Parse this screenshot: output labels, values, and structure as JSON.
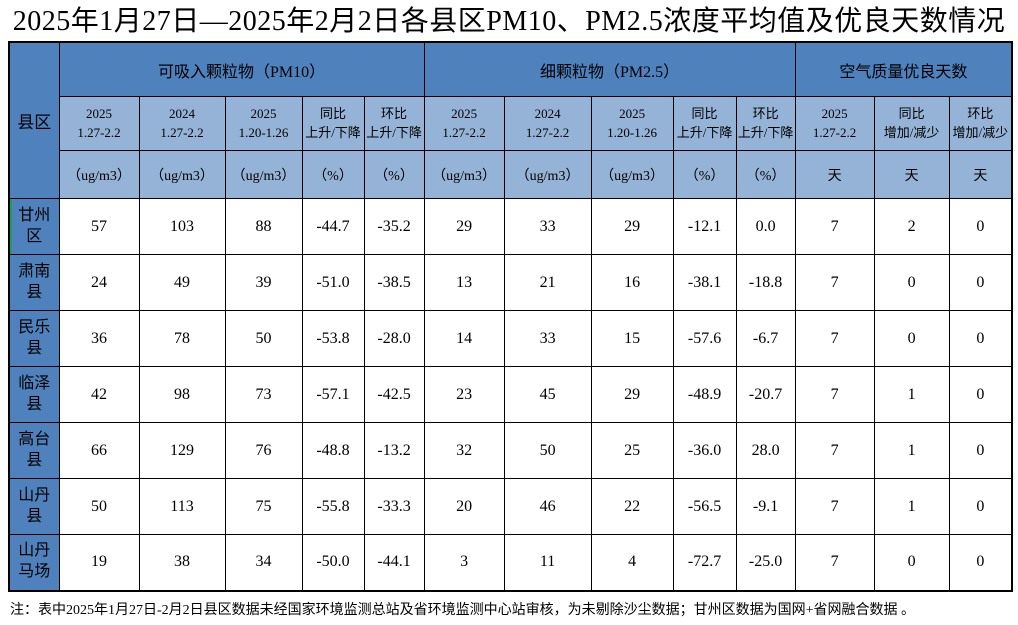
{
  "title": "2025年1月27日—2025年2月2日各县区PM10、PM2.5浓度平均值及优良天数情况",
  "colors": {
    "header_blue": "#4f81bd",
    "subheader_blue": "#95b3d7",
    "marker_green": "#1d9e60",
    "border_black": "#000000"
  },
  "table": {
    "corner_label": "县区",
    "groups": [
      {
        "label": "可吸入颗粒物（PM10）"
      },
      {
        "label": "细颗粒物（PM2.5）"
      },
      {
        "label": "空气质量优良天数"
      }
    ],
    "columns": [
      {
        "l1": "2025",
        "l2": "1.27-2.2"
      },
      {
        "l1": "2024",
        "l2": "1.27-2.2"
      },
      {
        "l1": "2025",
        "l2": "1.20-1.26"
      },
      {
        "l1": "同比",
        "l2": "上升/下降"
      },
      {
        "l1": "环比",
        "l2": "上升/下降"
      },
      {
        "l1": "2025",
        "l2": "1.27-2.2"
      },
      {
        "l1": "2024",
        "l2": "1.27-2.2"
      },
      {
        "l1": "2025",
        "l2": "1.20-1.26"
      },
      {
        "l1": "同比",
        "l2": "上升/下降"
      },
      {
        "l1": "环比",
        "l2": "上升/下降"
      },
      {
        "l1": "2025",
        "l2": "1.27-2.2"
      },
      {
        "l1": "同比",
        "l2": "增加/减少"
      },
      {
        "l1": "环比",
        "l2": "增加/减少"
      }
    ],
    "units": [
      "（ug/m3）",
      "（ug/m3）",
      "（ug/m3）",
      "（%）",
      "（%）",
      "（ug/m3）",
      "（ug/m3）",
      "（ug/m3）",
      "（%）",
      "（%）",
      "天",
      "天",
      "天"
    ],
    "rows": [
      {
        "county": "甘州区",
        "values": [
          "57",
          "103",
          "88",
          "-44.7",
          "-35.2",
          "29",
          "33",
          "29",
          "-12.1",
          "0.0",
          "7",
          "2",
          "0"
        ]
      },
      {
        "county": "肃南县",
        "values": [
          "24",
          "49",
          "39",
          "-51.0",
          "-38.5",
          "13",
          "21",
          "16",
          "-38.1",
          "-18.8",
          "7",
          "0",
          "0"
        ]
      },
      {
        "county": "民乐县",
        "values": [
          "36",
          "78",
          "50",
          "-53.8",
          "-28.0",
          "14",
          "33",
          "15",
          "-57.6",
          "-6.7",
          "7",
          "0",
          "0"
        ]
      },
      {
        "county": "临泽县",
        "values": [
          "42",
          "98",
          "73",
          "-57.1",
          "-42.5",
          "23",
          "45",
          "29",
          "-48.9",
          "-20.7",
          "7",
          "1",
          "0"
        ]
      },
      {
        "county": "高台县",
        "values": [
          "66",
          "129",
          "76",
          "-48.8",
          "-13.2",
          "32",
          "50",
          "25",
          "-36.0",
          "28.0",
          "7",
          "1",
          "0"
        ]
      },
      {
        "county": "山丹县",
        "values": [
          "50",
          "113",
          "75",
          "-55.8",
          "-33.3",
          "20",
          "46",
          "22",
          "-56.5",
          "-9.1",
          "7",
          "1",
          "0"
        ]
      },
      {
        "county": "山丹马场",
        "values": [
          "19",
          "38",
          "34",
          "-50.0",
          "-44.1",
          "3",
          "11",
          "4",
          "-72.7",
          "-25.0",
          "7",
          "0",
          "0"
        ]
      }
    ]
  },
  "note": "注：表中2025年1月27日-2月2日县区数据未经国家环境监测总站及省环境监测中心站审核，为未剔除沙尘数据；甘州区数据为国网+省网融合数据 。"
}
